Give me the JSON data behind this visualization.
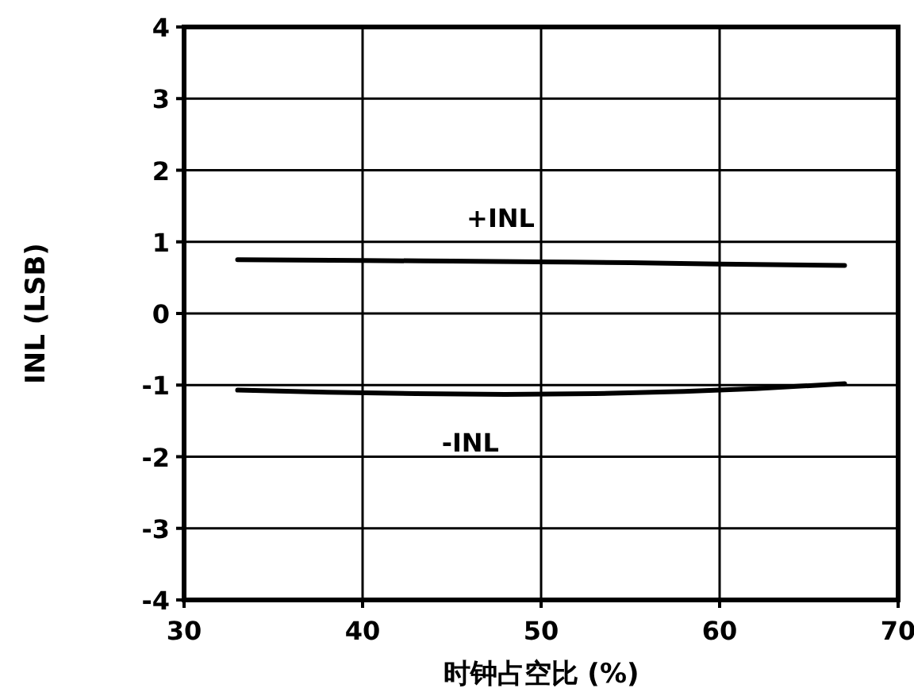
{
  "chart_data": {
    "type": "line",
    "xlabel": "时钟占空比 (%)",
    "ylabel": "INL (LSB)",
    "xlim": [
      30,
      70
    ],
    "xticks": [
      30,
      40,
      50,
      60,
      70
    ],
    "ylim": [
      -4,
      4
    ],
    "yticks": [
      -4,
      -3,
      -2,
      -1,
      0,
      1,
      2,
      3,
      4
    ],
    "grid": true,
    "marker": "none",
    "line_style": "solid",
    "series": [
      {
        "name": "+INL",
        "color": "#000000",
        "x": [
          33,
          40,
          45,
          50,
          55,
          60,
          67
        ],
        "values": [
          0.75,
          0.74,
          0.73,
          0.72,
          0.71,
          0.69,
          0.67
        ]
      },
      {
        "name": "-INL",
        "color": "#000000",
        "x": [
          33,
          38,
          43,
          48,
          53,
          58,
          62,
          67
        ],
        "values": [
          -1.07,
          -1.1,
          -1.12,
          -1.13,
          -1.12,
          -1.09,
          -1.05,
          -0.98
        ]
      }
    ]
  }
}
